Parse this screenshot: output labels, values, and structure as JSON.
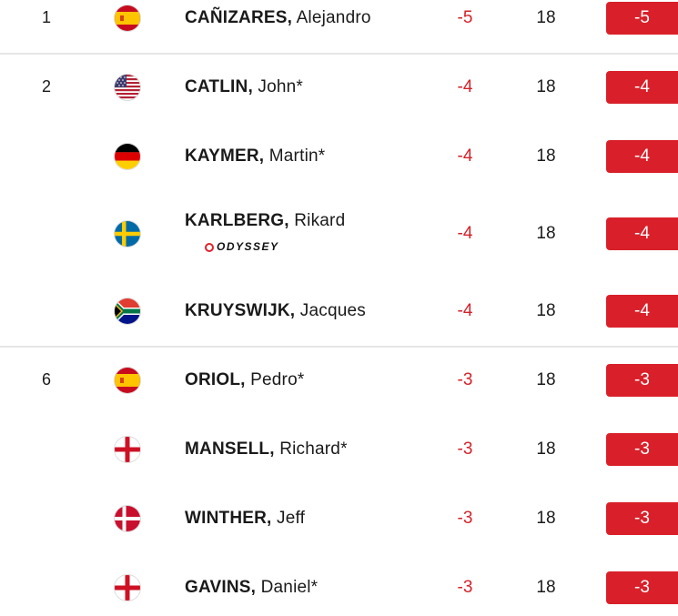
{
  "rows": [
    {
      "pos": "1",
      "flag": "spain-flag-icon",
      "last": "CAÑIZARES,",
      "first": "Alejandro",
      "today": "-5",
      "thru": "18",
      "total": "-5"
    },
    {
      "pos": "2",
      "flag": "usa-flag-icon",
      "last": "CATLIN,",
      "first": "John*",
      "today": "-4",
      "thru": "18",
      "total": "-4"
    },
    {
      "pos": "",
      "flag": "germany-flag-icon",
      "last": "KAYMER,",
      "first": "Martin*",
      "today": "-4",
      "thru": "18",
      "total": "-4"
    },
    {
      "pos": "",
      "flag": "sweden-flag-icon",
      "last": "KARLBERG,",
      "first": "Rikard",
      "sponsor": "ODYSSEY",
      "today": "-4",
      "thru": "18",
      "total": "-4"
    },
    {
      "pos": "",
      "flag": "south-africa-flag-icon",
      "last": "KRUYSWIJK,",
      "first": "Jacques",
      "today": "-4",
      "thru": "18",
      "total": "-4"
    },
    {
      "pos": "6",
      "flag": "spain-flag-icon",
      "last": "ORIOL,",
      "first": "Pedro*",
      "today": "-3",
      "thru": "18",
      "total": "-3"
    },
    {
      "pos": "",
      "flag": "england-flag-icon",
      "last": "MANSELL,",
      "first": "Richard*",
      "today": "-3",
      "thru": "18",
      "total": "-3"
    },
    {
      "pos": "",
      "flag": "denmark-flag-icon",
      "last": "WINTHER,",
      "first": "Jeff",
      "today": "-3",
      "thru": "18",
      "total": "-3"
    },
    {
      "pos": "",
      "flag": "england-flag-icon",
      "last": "GAVINS,",
      "first": "Daniel*",
      "today": "-3",
      "thru": "18",
      "total": "-3"
    }
  ],
  "colors": {
    "accent": "#d9202a",
    "score_red": "#d3222a",
    "divider": "#e6e6e6"
  }
}
